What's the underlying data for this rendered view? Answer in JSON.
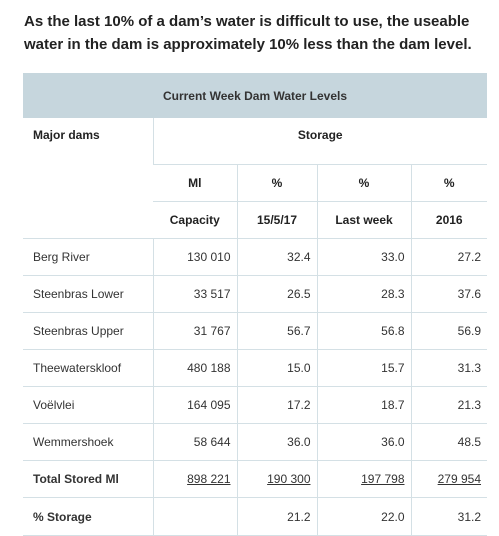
{
  "intro_text": "As the last 10% of a dam’s water is difficult to use, the useable water in the dam is approximately 10% less than the dam level.",
  "table": {
    "title": "Current Week Dam Water Levels",
    "major_dams_label": "Major dams",
    "storage_label": "Storage",
    "units": [
      "Ml",
      "%",
      "%",
      "%"
    ],
    "column_headers": [
      "Capacity",
      "15/5/17",
      "Last week",
      "2016"
    ],
    "rows": [
      {
        "name": "Berg River",
        "capacity": "130 010",
        "current": "32.4",
        "last_week": "33.0",
        "y2016": "27.2"
      },
      {
        "name": "Steenbras Lower",
        "capacity": "33 517",
        "current": "26.5",
        "last_week": "28.3",
        "y2016": "37.6"
      },
      {
        "name": "Steenbras Upper",
        "capacity": "31 767",
        "current": "56.7",
        "last_week": "56.8",
        "y2016": "56.9"
      },
      {
        "name": "Theewaterskloof",
        "capacity": "480 188",
        "current": "15.0",
        "last_week": "15.7",
        "y2016": "31.3"
      },
      {
        "name": "Voëlvlei",
        "capacity": "164 095",
        "current": "17.2",
        "last_week": "18.7",
        "y2016": "21.3"
      },
      {
        "name": "Wemmershoek",
        "capacity": "58 644",
        "current": "36.0",
        "last_week": "36.0",
        "y2016": "48.5"
      }
    ],
    "total": {
      "name": "Total Stored Ml",
      "capacity": "898 221",
      "current": "190 300",
      "last_week": "197 798",
      "y2016": "279 954"
    },
    "storage_pct": {
      "name": "% Storage",
      "capacity": "",
      "current": "21.2",
      "last_week": "22.0",
      "y2016": "31.2"
    }
  }
}
